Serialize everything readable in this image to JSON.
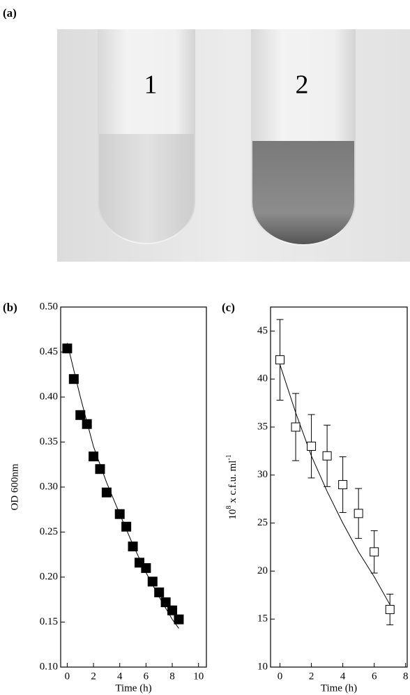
{
  "photo": {
    "label": "(a)",
    "tubes": [
      "1",
      "2"
    ]
  },
  "chart_data": [
    {
      "type": "scatter",
      "label": "(b)",
      "ylabel": "OD 600nm",
      "xlabel": "Time (h)",
      "xlim": [
        -0.5,
        10.6
      ],
      "xticks": [
        0,
        2,
        4,
        6,
        8,
        10
      ],
      "ylim": [
        0.1,
        0.5
      ],
      "yticks": [
        {
          "value": 0.1,
          "label": "0.10"
        },
        0.15,
        {
          "value": 0.2,
          "label": "0.20"
        },
        0.25,
        {
          "value": 0.3,
          "label": "0.30"
        },
        0.35,
        {
          "value": 0.4,
          "label": "0.40"
        },
        0.45,
        {
          "value": 0.5,
          "label": "0.50"
        }
      ],
      "marker": "filled-square",
      "color": "#000000",
      "x": [
        0,
        0.5,
        1,
        1.5,
        2,
        2.5,
        3,
        4,
        4.5,
        5,
        5.5,
        6,
        6.5,
        7,
        7.5,
        8,
        8.5
      ],
      "values": [
        0.454,
        0.42,
        0.38,
        0.37,
        0.334,
        0.32,
        0.294,
        0.27,
        0.256,
        0.234,
        0.216,
        0.21,
        0.195,
        0.183,
        0.172,
        0.163,
        0.153
      ],
      "fit_line": {
        "x": [
          0,
          1,
          2,
          3,
          4,
          5,
          6,
          7,
          8,
          8.5
        ],
        "values": [
          0.46,
          0.4,
          0.345,
          0.305,
          0.27,
          0.236,
          0.205,
          0.178,
          0.153,
          0.143
        ]
      }
    },
    {
      "type": "scatter",
      "label": "(c)",
      "ylabel": {
        "base": "10",
        "exp": "8",
        "text": " x c.f.u. ml",
        "unit_exp": "-1"
      },
      "xlabel": "Time (h)",
      "xlim": [
        -0.6,
        8.1
      ],
      "xticks": [
        0,
        2,
        4,
        6,
        8
      ],
      "ylim": [
        10,
        47.5
      ],
      "yticks": [
        10,
        15,
        20,
        25,
        30,
        35,
        40,
        45
      ],
      "marker": "open-square",
      "color": "#000000",
      "x": [
        0,
        1,
        2,
        3,
        4,
        5,
        6,
        7
      ],
      "values": [
        42,
        35,
        33,
        32,
        29,
        26,
        22,
        16
      ],
      "errors": [
        4.2,
        3.5,
        3.3,
        3.2,
        2.9,
        2.6,
        2.2,
        1.6
      ],
      "fit_line": {
        "x": [
          0,
          1,
          2,
          3,
          4,
          5,
          6,
          7
        ],
        "values": [
          41.5,
          36.5,
          32,
          28.3,
          25,
          22,
          19.4,
          16.5
        ]
      }
    }
  ]
}
